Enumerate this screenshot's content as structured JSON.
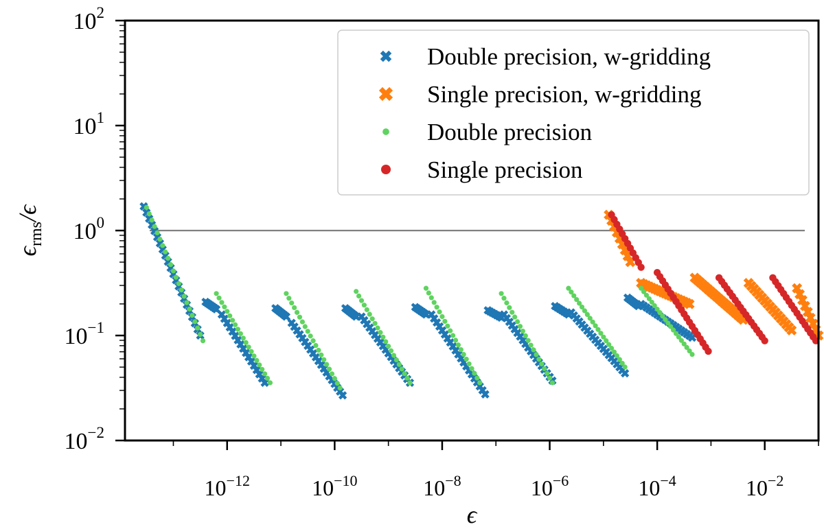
{
  "chart_data": {
    "type": "scatter",
    "title": "",
    "xlabel": "ϵ",
    "ylabel_main": "ϵ",
    "ylabel_sub": "rms",
    "ylabel_tail": "/ϵ",
    "xscale": "log",
    "yscale": "log",
    "xlim_exp": [
      -13.9,
      -1.0
    ],
    "ylim_exp": [
      -2,
      2
    ],
    "xticks": [
      {
        "exp": -12,
        "base": "10",
        "sup": "−12"
      },
      {
        "exp": -10,
        "base": "10",
        "sup": "−10"
      },
      {
        "exp": -8,
        "base": "10",
        "sup": "−8"
      },
      {
        "exp": -6,
        "base": "10",
        "sup": "−6"
      },
      {
        "exp": -4,
        "base": "10",
        "sup": "−4"
      },
      {
        "exp": -2,
        "base": "10",
        "sup": "−2"
      }
    ],
    "yticks": [
      {
        "exp": -2,
        "base": "10",
        "sup": "−2"
      },
      {
        "exp": -1,
        "base": "10",
        "sup": "−1"
      },
      {
        "exp": 0,
        "base": "10",
        "sup": "0"
      },
      {
        "exp": 1,
        "base": "10",
        "sup": "1"
      },
      {
        "exp": 2,
        "base": "10",
        "sup": "2"
      }
    ],
    "reference_line": {
      "y": 1.0,
      "color": "#808080"
    },
    "legend_position": "top-right",
    "series": [
      {
        "name": "Double precision, w-gridding",
        "marker": "x",
        "color": "#1f77b4",
        "segments": [
          {
            "x_exp": [
              -13.55,
              -12.5
            ],
            "y_exp": [
              0.23,
              -1.0
            ]
          },
          {
            "x_exp": [
              -12.4,
              -12.2
            ],
            "y_exp": [
              -0.68,
              -0.75
            ]
          },
          {
            "x_exp": [
              -12.1,
              -11.3
            ],
            "y_exp": [
              -0.8,
              -1.45
            ]
          },
          {
            "x_exp": [
              -11.1,
              -10.9
            ],
            "y_exp": [
              -0.74,
              -0.82
            ]
          },
          {
            "x_exp": [
              -10.8,
              -9.85
            ],
            "y_exp": [
              -0.88,
              -1.57
            ]
          },
          {
            "x_exp": [
              -9.8,
              -9.6
            ],
            "y_exp": [
              -0.74,
              -0.82
            ]
          },
          {
            "x_exp": [
              -9.5,
              -8.6
            ],
            "y_exp": [
              -0.82,
              -1.45
            ]
          },
          {
            "x_exp": [
              -8.5,
              -8.3
            ],
            "y_exp": [
              -0.73,
              -0.8
            ]
          },
          {
            "x_exp": [
              -8.2,
              -7.2
            ],
            "y_exp": [
              -0.8,
              -1.56
            ]
          },
          {
            "x_exp": [
              -7.15,
              -6.9
            ],
            "y_exp": [
              -0.76,
              -0.83
            ]
          },
          {
            "x_exp": [
              -6.85,
              -5.95
            ],
            "y_exp": [
              -0.8,
              -1.43
            ]
          },
          {
            "x_exp": [
              -5.9,
              -5.65
            ],
            "y_exp": [
              -0.72,
              -0.8
            ]
          },
          {
            "x_exp": [
              -5.6,
              -4.6
            ],
            "y_exp": [
              -0.78,
              -1.36
            ]
          },
          {
            "x_exp": [
              -4.55,
              -4.35
            ],
            "y_exp": [
              -0.64,
              -0.72
            ]
          },
          {
            "x_exp": [
              -4.3,
              -3.35
            ],
            "y_exp": [
              -0.7,
              -1.02
            ]
          }
        ]
      },
      {
        "name": "Single precision, w-gridding",
        "marker": "x",
        "color": "#ff7f0e",
        "segments": [
          {
            "x_exp": [
              -4.9,
              -4.5
            ],
            "y_exp": [
              0.15,
              -0.3
            ]
          },
          {
            "x_exp": [
              -4.3,
              -3.4
            ],
            "y_exp": [
              -0.5,
              -0.7
            ]
          },
          {
            "x_exp": [
              -3.3,
              -2.4
            ],
            "y_exp": [
              -0.45,
              -0.85
            ]
          },
          {
            "x_exp": [
              -2.3,
              -1.5
            ],
            "y_exp": [
              -0.5,
              -0.95
            ]
          },
          {
            "x_exp": [
              -1.4,
              -1.0
            ],
            "y_exp": [
              -0.55,
              -1.0
            ]
          }
        ]
      },
      {
        "name": "Double precision",
        "marker": "dot",
        "color": "#5fd35f",
        "segments": [
          {
            "x_exp": [
              -13.5,
              -12.45
            ],
            "y_exp": [
              0.22,
              -1.05
            ]
          },
          {
            "x_exp": [
              -12.2,
              -11.2
            ],
            "y_exp": [
              -0.6,
              -1.45
            ]
          },
          {
            "x_exp": [
              -10.9,
              -9.9
            ],
            "y_exp": [
              -0.6,
              -1.5
            ]
          },
          {
            "x_exp": [
              -9.6,
              -8.6
            ],
            "y_exp": [
              -0.58,
              -1.45
            ]
          },
          {
            "x_exp": [
              -8.3,
              -7.3
            ],
            "y_exp": [
              -0.55,
              -1.45
            ]
          },
          {
            "x_exp": [
              -6.9,
              -5.95
            ],
            "y_exp": [
              -0.6,
              -1.45
            ]
          },
          {
            "x_exp": [
              -5.65,
              -4.6
            ],
            "y_exp": [
              -0.55,
              -1.3
            ]
          },
          {
            "x_exp": [
              -4.3,
              -3.35
            ],
            "y_exp": [
              -0.55,
              -1.18
            ]
          }
        ]
      },
      {
        "name": "Single precision",
        "marker": "dot",
        "color": "#d62728",
        "segments": [
          {
            "x_exp": [
              -4.85,
              -4.3
            ],
            "y_exp": [
              0.15,
              -0.35
            ]
          },
          {
            "x_exp": [
              -4.0,
              -3.05
            ],
            "y_exp": [
              -0.4,
              -1.15
            ]
          },
          {
            "x_exp": [
              -2.85,
              -2.0
            ],
            "y_exp": [
              -0.45,
              -1.05
            ]
          },
          {
            "x_exp": [
              -1.85,
              -1.05
            ],
            "y_exp": [
              -0.45,
              -1.05
            ]
          }
        ]
      }
    ]
  }
}
